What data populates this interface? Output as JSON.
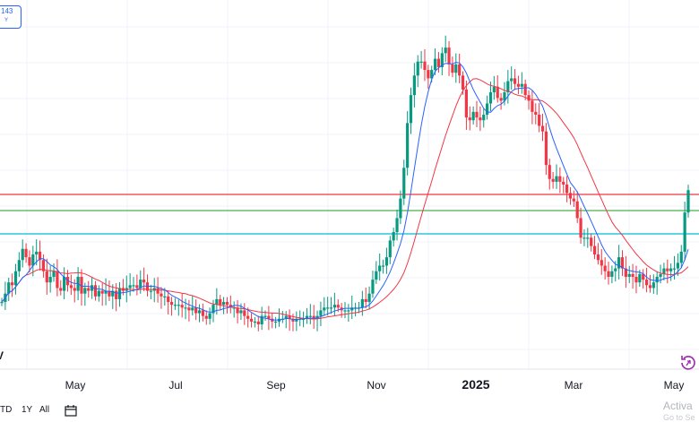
{
  "legend": {
    "line1": "143",
    "line2": "Y"
  },
  "logo_text": "V",
  "timeframes": [
    "TD",
    "1Y",
    "All"
  ],
  "watermark": {
    "line1": "Activa",
    "line2": "Go to Se"
  },
  "icons": [
    "calendar-range-icon",
    "reset-scale-icon"
  ],
  "colors": {
    "up": "#089981",
    "down": "#f23645",
    "ma_fast": "#2962ff",
    "ma_slow": "#f23645",
    "line_red": "#f23645",
    "line_green": "#4caf50",
    "line_cyan": "#00bcd4",
    "grid": "#f0f3fa",
    "axis_text": "#131722"
  },
  "chart_data": {
    "type": "candlestick",
    "x_axis_labels": [
      "May",
      "Jul",
      "Sep",
      "Nov",
      "2025",
      "Mar",
      "May"
    ],
    "grid": true,
    "price_axis": "hidden",
    "horizontal_lines": [
      {
        "name": "",
        "level": "red"
      },
      {
        "name": "",
        "level": "green"
      },
      {
        "name": "",
        "level": "cyan"
      }
    ],
    "series": [
      {
        "name": "",
        "style": "candles",
        "trend": [
          0.08,
          0.11,
          0.15,
          0.14,
          0.19,
          0.23,
          0.27,
          0.24,
          0.21,
          0.25,
          0.26,
          0.23,
          0.19,
          0.15,
          0.17,
          0.19,
          0.13,
          0.12,
          0.17,
          0.14,
          0.13,
          0.12,
          0.17,
          0.11,
          0.13,
          0.12,
          0.14,
          0.1,
          0.12,
          0.11,
          0.12,
          0.1,
          0.12,
          0.09,
          0.13,
          0.12,
          0.13,
          0.14,
          0.14,
          0.13,
          0.16,
          0.15,
          0.12,
          0.12,
          0.13,
          0.11,
          0.1,
          0.1,
          0.08,
          0.07,
          0.07,
          0.07,
          0.06,
          0.06,
          0.05,
          0.06,
          0.04,
          0.05,
          0.03,
          0.02,
          0.04,
          0.07,
          0.09,
          0.07,
          0.08,
          0.07,
          0.06,
          0.06,
          0.04,
          0.05,
          0.03,
          0.02,
          0.01,
          0.01,
          0.0,
          0.03,
          0.03,
          0.02,
          0.01,
          0.01,
          0.02,
          0.02,
          0.03,
          0.02,
          0.01,
          0.02,
          0.02,
          0.02,
          0.03,
          0.03,
          0.02,
          0.03,
          0.05,
          0.06,
          0.06,
          0.06,
          0.07,
          0.06,
          0.05,
          0.05,
          0.05,
          0.06,
          0.06,
          0.06,
          0.09,
          0.08,
          0.11,
          0.16,
          0.19,
          0.21,
          0.21,
          0.24,
          0.3,
          0.33,
          0.38,
          0.45,
          0.56,
          0.72,
          0.82,
          0.89,
          0.94,
          0.94,
          0.91,
          0.88,
          0.91,
          0.95,
          0.92,
          0.97,
          0.99,
          0.93,
          0.9,
          0.93,
          0.89,
          0.84,
          0.74,
          0.73,
          0.76,
          0.74,
          0.73,
          0.75,
          0.79,
          0.83,
          0.85,
          0.81,
          0.8,
          0.83,
          0.87,
          0.88,
          0.86,
          0.85,
          0.86,
          0.82,
          0.8,
          0.76,
          0.75,
          0.71,
          0.69,
          0.57,
          0.52,
          0.51,
          0.53,
          0.51,
          0.5,
          0.47,
          0.45,
          0.44,
          0.38,
          0.31,
          0.31,
          0.31,
          0.28,
          0.25,
          0.23,
          0.21,
          0.19,
          0.17,
          0.19,
          0.2,
          0.24,
          0.2,
          0.17,
          0.18,
          0.17,
          0.15,
          0.18,
          0.16,
          0.14,
          0.13,
          0.15,
          0.17,
          0.18,
          0.2,
          0.19,
          0.2,
          0.2,
          0.22,
          0.26,
          0.4,
          0.48
        ]
      },
      {
        "name": "",
        "style": "line",
        "color": "blue"
      },
      {
        "name": "",
        "style": "line",
        "color": "red"
      }
    ]
  }
}
